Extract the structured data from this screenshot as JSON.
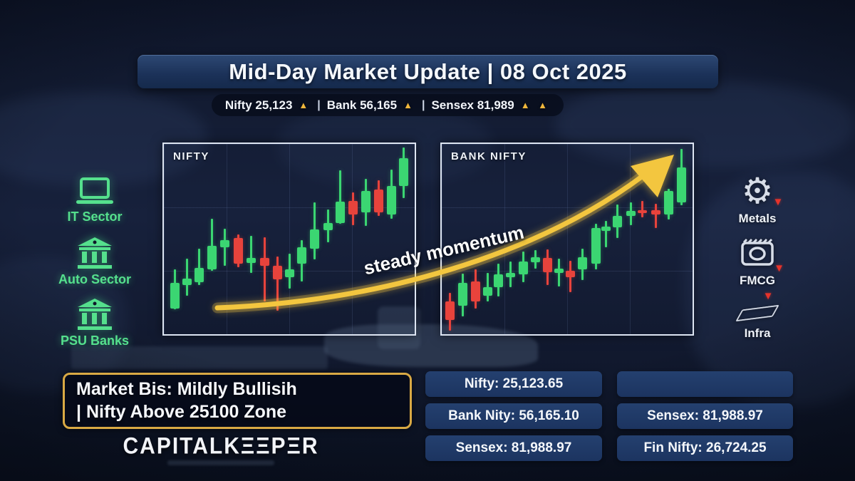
{
  "title": {
    "text": "Mid-Day Market Update | 08 Oct 2025"
  },
  "ticker": {
    "separator": "|",
    "items": [
      {
        "text": "Nifty 25,123",
        "arrows": "▲"
      },
      {
        "text": "Bank 56,165",
        "arrows": "▲"
      },
      {
        "text": "Sensex 81,989",
        "arrows": "▲ ▲"
      }
    ]
  },
  "sectors": {
    "left": [
      {
        "name": "IT Sector",
        "icon": "laptop-icon"
      },
      {
        "name": "Auto Sector",
        "icon": "bank-building-icon"
      },
      {
        "name": "PSU Banks",
        "icon": "bank-building-icon"
      }
    ],
    "right": [
      {
        "name": "Metals",
        "icon": "gear-icon",
        "trend": "▼"
      },
      {
        "name": "FMCG",
        "icon": "camera-box-icon",
        "trend": "▼"
      },
      {
        "name": "Infra",
        "icon": "brick-plank-icon",
        "trend": "▼"
      }
    ]
  },
  "summary": {
    "lines": [
      "Market Bis: Mildly Bullisih",
      "| Nifty Above 25100 Zone"
    ]
  },
  "logo": {
    "text": "CAPITALKEEPER",
    "display": "CAPITALKΞΞPΞR"
  },
  "stats": {
    "left": [
      "Nifty: 25,123.65",
      "Bank Nity: 56,165.10",
      "Sensex: 81,988.97"
    ],
    "right": [
      "",
      "Sensex: 81,988.97",
      "Fin Nifty: 26,724.25"
    ]
  },
  "colors": {
    "candle_up": "#3bd672",
    "candle_down": "#e8433c",
    "arrow_gold": "#f3c63f",
    "accent_gold_border": "#d9a944",
    "sector_green": "#55e08d",
    "panel_navy": "#1c3460",
    "ticker_triangle": "#efb63c"
  },
  "chart_data": [
    {
      "type": "candlestick",
      "title": "NIFTY",
      "axes_labeled": false,
      "grid": true,
      "coord_note": "each candle = [x%, wickTop%, bodyTop%, bodyBottom%, wickBottom%, color] in % of panel (top=0)",
      "candles": [
        [
          4.5,
          66,
          73,
          86.4,
          87,
          "g"
        ],
        [
          9.3,
          60.2,
          70.6,
          74.3,
          79.6,
          "g"
        ],
        [
          14.2,
          54.9,
          65.1,
          72.8,
          74.3,
          "g"
        ],
        [
          19.3,
          39.5,
          53.7,
          66,
          66.7,
          "g"
        ],
        [
          24.4,
          44.7,
          50.6,
          54.3,
          63.9,
          "g"
        ],
        [
          29.7,
          47.5,
          49.4,
          63,
          64.8,
          "r"
        ],
        [
          34.9,
          48.5,
          59.9,
          62.7,
          67.9,
          "g"
        ],
        [
          40.2,
          49.1,
          59.9,
          64.2,
          82.7,
          "r"
        ],
        [
          45.3,
          59,
          64.2,
          71,
          87.7,
          "r"
        ],
        [
          50,
          57.8,
          66,
          70.1,
          75.9,
          "g"
        ],
        [
          55,
          50.6,
          54.3,
          63,
          72.2,
          "g"
        ],
        [
          60.1,
          30.6,
          45.1,
          54.9,
          60.5,
          "g"
        ],
        [
          65.4,
          34.3,
          41.4,
          45.4,
          51.6,
          "g"
        ],
        [
          70.3,
          13.8,
          30.2,
          41.4,
          42,
          "g"
        ],
        [
          75.3,
          25.3,
          29.9,
          37,
          42.6,
          "r"
        ],
        [
          80.6,
          18.5,
          24.7,
          35.8,
          43.2,
          "g"
        ],
        [
          85.6,
          19.1,
          24.1,
          35.8,
          37.7,
          "r"
        ],
        [
          90.7,
          13.3,
          22.2,
          37,
          39.5,
          "g"
        ],
        [
          95.7,
          1.9,
          7.4,
          22.2,
          28.4,
          "g"
        ]
      ]
    },
    {
      "type": "candlestick",
      "title": "BANK NIFTY",
      "axes_labeled": false,
      "grid": true,
      "annotation": "steady momentum",
      "coord_note": "each candle = [x%, wickTop%, bodyTop%, bodyBottom%, wickBottom%, color] in % of panel (top=0)",
      "candles": [
        [
          3.3,
          78.4,
          82.8,
          92.6,
          98,
          "r"
        ],
        [
          8.3,
          68,
          72.9,
          85.2,
          90.8,
          "g"
        ],
        [
          13.5,
          66.1,
          72.3,
          82.8,
          86.5,
          "r"
        ],
        [
          18.2,
          67.7,
          75.1,
          79.7,
          82.8,
          "g"
        ],
        [
          22.6,
          63.1,
          68.6,
          75.4,
          80.3,
          "g"
        ],
        [
          27.5,
          61.8,
          67.7,
          70.2,
          75.1,
          "g"
        ],
        [
          32.4,
          56.7,
          61.8,
          68.6,
          72.7,
          "g"
        ],
        [
          37.4,
          55.7,
          59.4,
          62.1,
          65.5,
          "g"
        ],
        [
          42.2,
          55.4,
          60,
          67.4,
          74.1,
          "r"
        ],
        [
          46.6,
          60.3,
          65.5,
          67.7,
          74.8,
          "g"
        ],
        [
          51.4,
          61.6,
          66.5,
          70.2,
          77.8,
          "r"
        ],
        [
          56.1,
          55,
          59.4,
          66.1,
          71.7,
          "g"
        ],
        [
          61.4,
          41.9,
          44.3,
          62.8,
          66.1,
          "g"
        ],
        [
          65.6,
          40.6,
          43.3,
          45.8,
          54.2,
          "g"
        ],
        [
          70,
          32,
          37.8,
          44,
          49.3,
          "g"
        ],
        [
          75.4,
          30.8,
          35.3,
          37.8,
          42.7,
          "g"
        ],
        [
          80.1,
          30,
          34.7,
          36.2,
          38.7,
          "r"
        ],
        [
          85.5,
          31.3,
          35,
          36.9,
          44.3,
          "r"
        ],
        [
          90.5,
          23.6,
          24.9,
          37.2,
          39.7,
          "g"
        ],
        [
          95.5,
          2.7,
          12.3,
          30.8,
          32.3,
          "g"
        ]
      ]
    }
  ]
}
